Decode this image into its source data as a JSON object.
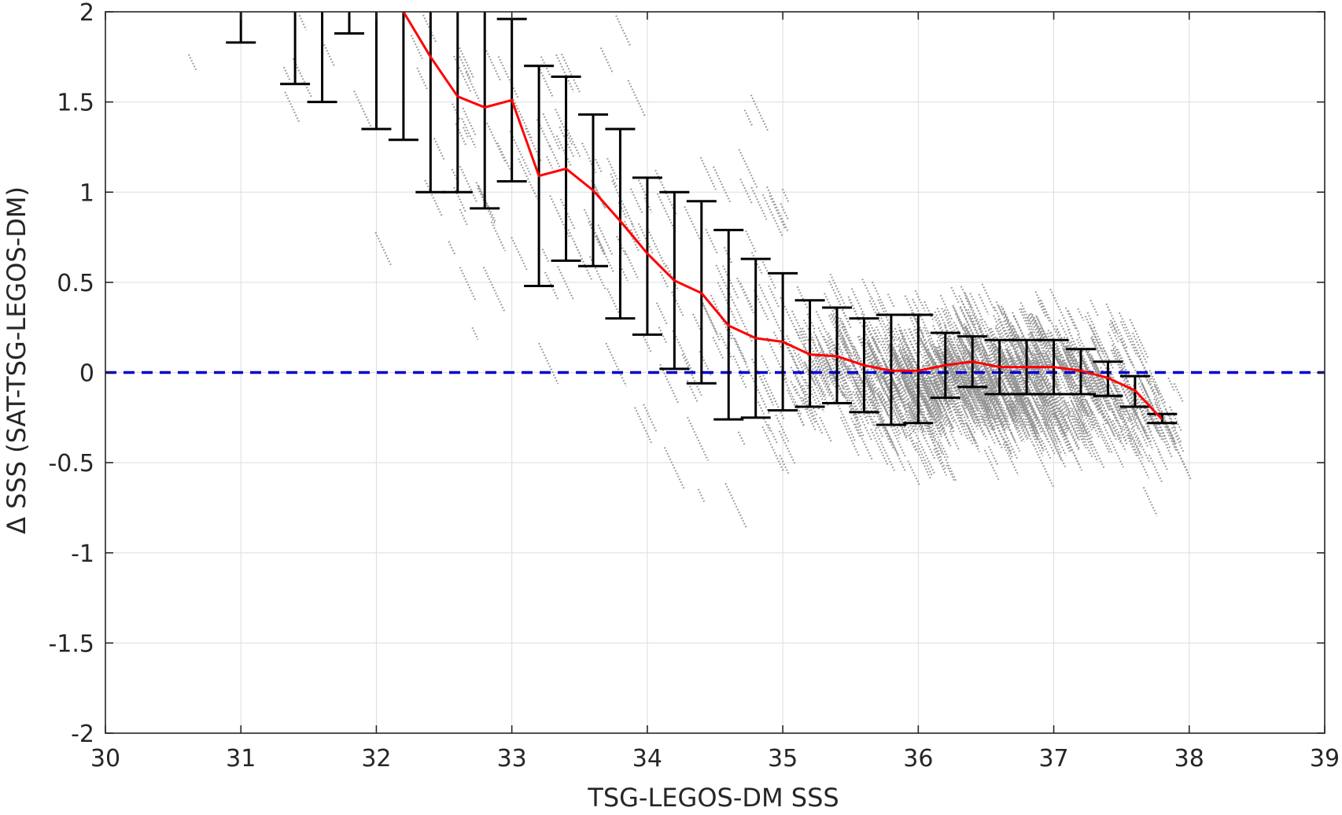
{
  "chart_data": {
    "type": "scatter",
    "title": "",
    "xlabel": "TSG-LEGOS-DM SSS",
    "ylabel": "Δ SSS (SAT-TSG-LEGOS-DM)",
    "xlim": [
      30,
      39
    ],
    "ylim": [
      -2,
      2
    ],
    "xticks": [
      30,
      31,
      32,
      33,
      34,
      35,
      36,
      37,
      38,
      39
    ],
    "yticks": [
      -2,
      -1.5,
      -1,
      -0.5,
      0,
      0.5,
      1,
      1.5,
      2
    ],
    "xtick_labels": [
      "30",
      "31",
      "32",
      "33",
      "34",
      "35",
      "36",
      "37",
      "38",
      "39"
    ],
    "ytick_labels": [
      "-2",
      "-1.5",
      "-1",
      "-0.5",
      "0",
      "0.5",
      "1",
      "1.5",
      "2"
    ],
    "grid": true,
    "legend": "none",
    "colors": {
      "scatter": "#808080",
      "mean_line": "#ff0000",
      "error_bars": "#000000",
      "zero_line": "#0000cc",
      "grid": "#dddddd",
      "axes": "#262626"
    },
    "series": [
      {
        "kind": "mean_line",
        "x": [
          32.2,
          32.4,
          32.6,
          32.8,
          33.0,
          33.2,
          33.4,
          33.6,
          33.8,
          34.0,
          34.2,
          34.4,
          34.6,
          34.8,
          35.0,
          35.2,
          35.4,
          35.6,
          35.8,
          36.0,
          36.2,
          36.4,
          36.6,
          36.8,
          37.0,
          37.2,
          37.4,
          37.6,
          37.8
        ],
        "y": [
          2.0,
          1.75,
          1.53,
          1.47,
          1.51,
          1.09,
          1.13,
          1.01,
          0.84,
          0.66,
          0.51,
          0.44,
          0.26,
          0.19,
          0.17,
          0.1,
          0.09,
          0.04,
          0.01,
          0.01,
          0.04,
          0.06,
          0.03,
          0.03,
          0.03,
          0.01,
          -0.03,
          -0.1,
          -0.26
        ]
      },
      {
        "kind": "error_bars",
        "x": [
          31.0,
          31.4,
          31.6,
          31.8,
          32.0,
          32.2,
          32.4,
          32.6,
          32.8,
          33.0,
          33.2,
          33.4,
          33.6,
          33.8,
          34.0,
          34.2,
          34.4,
          34.6,
          34.8,
          35.0,
          35.2,
          35.4,
          35.6,
          35.8,
          36.0,
          36.2,
          36.4,
          36.6,
          36.8,
          37.0,
          37.2,
          37.4,
          37.6,
          37.8
        ],
        "upper": [
          2.0,
          2.0,
          2.0,
          2.0,
          2.0,
          2.0,
          2.0,
          2.0,
          2.0,
          1.96,
          1.7,
          1.64,
          1.43,
          1.35,
          1.08,
          1.0,
          0.95,
          0.79,
          0.63,
          0.55,
          0.4,
          0.36,
          0.3,
          0.32,
          0.32,
          0.22,
          0.2,
          0.18,
          0.18,
          0.18,
          0.13,
          0.06,
          -0.02,
          -0.23
        ],
        "lower": [
          1.83,
          1.6,
          1.5,
          1.88,
          1.35,
          1.29,
          1.0,
          1.0,
          0.91,
          1.06,
          0.48,
          0.62,
          0.59,
          0.3,
          0.21,
          0.02,
          -0.06,
          -0.26,
          -0.25,
          -0.21,
          -0.19,
          -0.17,
          -0.22,
          -0.29,
          -0.28,
          -0.14,
          -0.08,
          -0.12,
          -0.12,
          -0.12,
          -0.12,
          -0.13,
          -0.19,
          -0.28
        ]
      },
      {
        "kind": "reference_line",
        "y": 0
      }
    ]
  }
}
